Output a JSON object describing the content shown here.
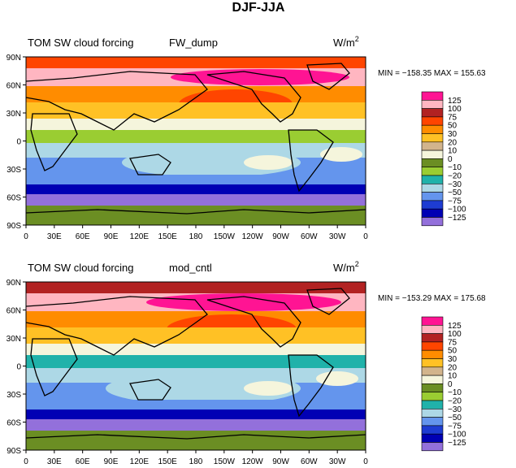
{
  "figure_title": "DJF-JJA",
  "contour_levels": [
    "125",
    "100",
    "75",
    "50",
    "30",
    "20",
    "10",
    "0",
    "−10",
    "−20",
    "−30",
    "−50",
    "−75",
    "−100",
    "−125"
  ],
  "level_values": [
    125,
    100,
    75,
    50,
    30,
    20,
    10,
    0,
    -10,
    -20,
    -30,
    -50,
    -75,
    -100,
    -125
  ],
  "colorbar_colors": [
    "#ff1493",
    "#ffb6c1",
    "#b22222",
    "#ff4500",
    "#ff8c00",
    "#ffc125",
    "#d2b48c",
    "#f5f5dc",
    "#6b8e23",
    "#9acd32",
    "#20b2aa",
    "#add8e6",
    "#6495ed",
    "#1e3cd2",
    "#0000b4",
    "#9370db"
  ],
  "x_tick_labels": [
    "0",
    "30E",
    "60E",
    "90E",
    "120E",
    "150E",
    "180",
    "150W",
    "120W",
    "90W",
    "60W",
    "30W",
    "0"
  ],
  "y_tick_labels": [
    "90N",
    "60N",
    "30N",
    "0",
    "30S",
    "60S",
    "90S"
  ],
  "chart_data": [
    {
      "type": "heatmap",
      "title_left": "TOM SW cloud forcing",
      "title_center": "FW_dump",
      "units": "W/m",
      "units_exp": "2",
      "stats": "MIN = −158.35  MAX = 155.63",
      "min": -158.35,
      "max": 155.63,
      "xlim": [
        0,
        360
      ],
      "ylim": [
        -90,
        90
      ]
    },
    {
      "type": "heatmap",
      "title_left": "TOM SW cloud forcing",
      "title_center": "mod_cntl",
      "units": "W/m",
      "units_exp": "2",
      "stats": "MIN = −153.29  MAX = 175.68",
      "min": -153.29,
      "max": 175.68,
      "xlim": [
        0,
        360
      ],
      "ylim": [
        -90,
        90
      ]
    }
  ]
}
